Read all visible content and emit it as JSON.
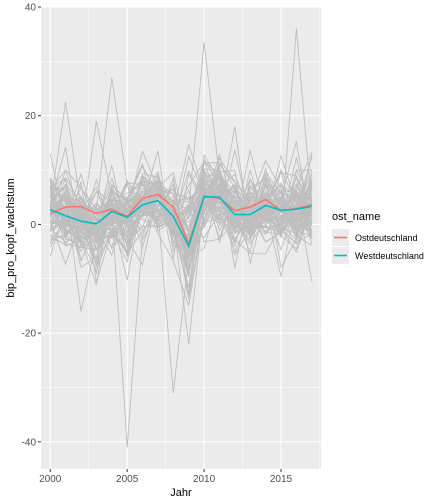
{
  "chart_data": {
    "type": "line",
    "xlabel": "Jahr",
    "ylabel": "bip_pro_kopf_wachstum",
    "xlim": [
      1999.4,
      2017.6
    ],
    "ylim": [
      -45,
      40
    ],
    "x_ticks": [
      2000,
      2005,
      2010,
      2015
    ],
    "x_tick_labels": [
      "2000",
      "2005",
      "2010",
      "2015"
    ],
    "y_ticks": [
      -40,
      -20,
      0,
      20,
      40
    ],
    "y_tick_labels": [
      "-40",
      "-20",
      "0",
      "20",
      "40"
    ],
    "grid": true,
    "legend_position": "right",
    "legend_title": "ost_name",
    "background_lines": {
      "color": "#bebebe",
      "count": 80,
      "x": [
        2000,
        2001,
        2002,
        2003,
        2004,
        2005,
        2006,
        2007,
        2008,
        2009,
        2010,
        2011,
        2012,
        2013,
        2014,
        2015,
        2016,
        2017
      ],
      "note_range_y": [
        -41,
        36
      ]
    },
    "series": [
      {
        "name": "Ostdeutschland",
        "color": "#F8766D",
        "x": [
          2000,
          2001,
          2002,
          2003,
          2004,
          2005,
          2006,
          2007,
          2008,
          2009,
          2010,
          2011,
          2012,
          2013,
          2014,
          2015,
          2016,
          2017
        ],
        "values": [
          2.0,
          3.2,
          3.3,
          2.0,
          2.8,
          1.5,
          4.8,
          5.5,
          3.2,
          -3.5,
          5.2,
          4.8,
          2.5,
          3.2,
          4.6,
          2.5,
          2.9,
          3.6
        ]
      },
      {
        "name": "Westdeutschland",
        "color": "#00BFC4",
        "x": [
          2000,
          2001,
          2002,
          2003,
          2004,
          2005,
          2006,
          2007,
          2008,
          2009,
          2010,
          2011,
          2012,
          2013,
          2014,
          2015,
          2016,
          2017
        ],
        "values": [
          2.7,
          1.6,
          0.6,
          0.1,
          2.4,
          1.3,
          3.6,
          4.4,
          1.5,
          -4.0,
          5.1,
          5.0,
          1.8,
          1.8,
          3.5,
          2.6,
          2.8,
          3.3
        ]
      }
    ]
  }
}
